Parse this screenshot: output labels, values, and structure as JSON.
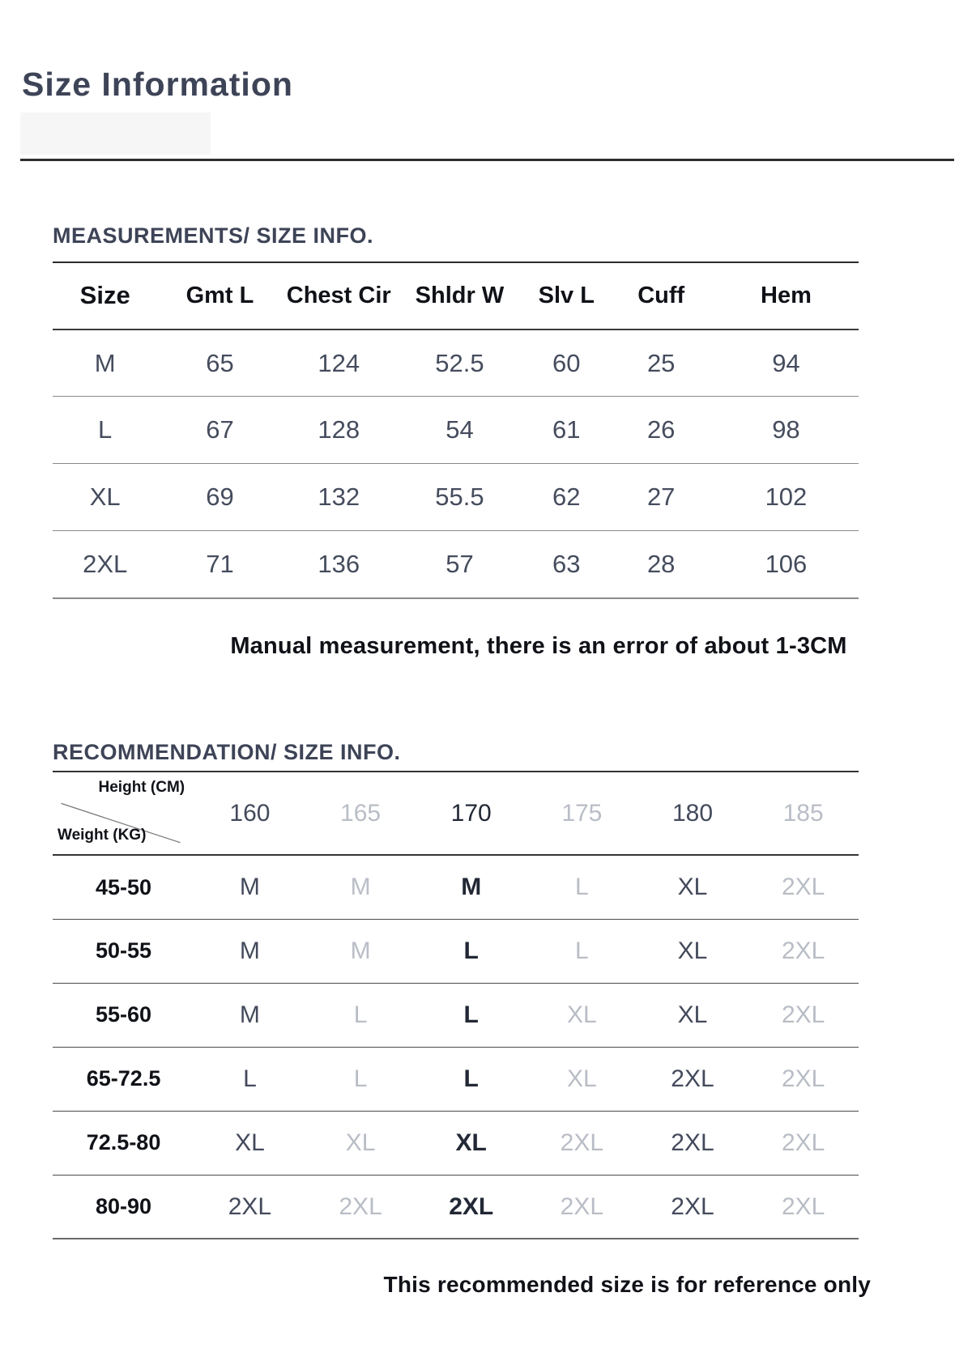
{
  "page": {
    "title": "Size Information",
    "measure_note": "Manual measurement, there is an error of about 1-3CM",
    "bottom_note": "This recommended size is for reference only"
  },
  "measurements": {
    "heading": "MEASUREMENTS/ SIZE INFO.",
    "columns": [
      "Size",
      "Gmt L",
      "Chest Cir",
      "Shldr W",
      "Slv L",
      "Cuff",
      "Hem"
    ],
    "rows": [
      {
        "size": "M",
        "values": [
          "65",
          "124",
          "52.5",
          "60",
          "25",
          "94"
        ]
      },
      {
        "size": "L",
        "values": [
          "67",
          "128",
          "54",
          "61",
          "26",
          "98"
        ]
      },
      {
        "size": "XL",
        "values": [
          "69",
          "132",
          "55.5",
          "62",
          "27",
          "102"
        ]
      },
      {
        "size": "2XL",
        "values": [
          "71",
          "136",
          "57",
          "63",
          "28",
          "106"
        ]
      }
    ]
  },
  "recommendation": {
    "heading": "RECOMMENDATION/ SIZE INFO.",
    "corner": {
      "top": "Height (CM)",
      "bottom": "Weight (KG)"
    },
    "height_columns": [
      "160",
      "165",
      "170",
      "175",
      "180",
      "185"
    ],
    "rows": [
      {
        "weight": "45-50",
        "sizes": [
          "M",
          "M",
          "M",
          "L",
          "XL",
          "2XL"
        ]
      },
      {
        "weight": "50-55",
        "sizes": [
          "M",
          "M",
          "L",
          "L",
          "XL",
          "2XL"
        ]
      },
      {
        "weight": "55-60",
        "sizes": [
          "M",
          "L",
          "L",
          "XL",
          "XL",
          "2XL"
        ]
      },
      {
        "weight": "65-72.5",
        "sizes": [
          "L",
          "L",
          "L",
          "XL",
          "2XL",
          "2XL"
        ]
      },
      {
        "weight": "72.5-80",
        "sizes": [
          "XL",
          "XL",
          "XL",
          "2XL",
          "2XL",
          "2XL"
        ]
      },
      {
        "weight": "80-90",
        "sizes": [
          "2XL",
          "2XL",
          "2XL",
          "2XL",
          "2XL",
          "2XL"
        ]
      }
    ]
  },
  "colors": {
    "heading_navy": "#3e4457",
    "text_black": "#101218",
    "cell_dark": "#434a5b",
    "cell_emphasis": "#222835",
    "cell_gray": "#b9bdc6"
  }
}
